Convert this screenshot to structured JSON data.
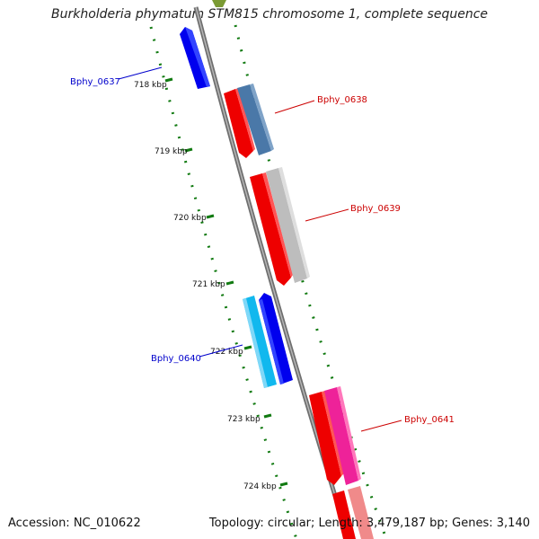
{
  "title": "Burkholderia phymatum STM815 chromosome 1, complete sequence",
  "footer": {
    "accession": "Accession: NC_010622",
    "topology": "Topology: circular; Length: 3,479,187 bp; Genes: 3,140"
  },
  "ticks": [
    "718 kbp",
    "719 kbp",
    "720 kbp",
    "721 kbp",
    "722 kbp",
    "723 kbp",
    "724 kbp"
  ],
  "gene_labels": [
    {
      "text": "Bphy_0637",
      "color": "#0000cc"
    },
    {
      "text": "Bphy_0638",
      "color": "#cc0000"
    },
    {
      "text": "Bphy_0639",
      "color": "#cc0000"
    },
    {
      "text": "Bphy_0640",
      "color": "#0000cc"
    },
    {
      "text": "Bphy_0641",
      "color": "#cc0000"
    }
  ],
  "colors": {
    "backbone": "#808080",
    "tick": "#117a11",
    "forward_strand": "#ff0000",
    "reverse_strand": "#0000ee",
    "cyan_gene": "#11b8ee",
    "steelblue_gene": "#4a78a8",
    "grey_gene": "#bdbdbd",
    "magenta_gene": "#ee2299",
    "pink_gene": "#f08a8a",
    "olive_gene": "#7a9a33"
  }
}
